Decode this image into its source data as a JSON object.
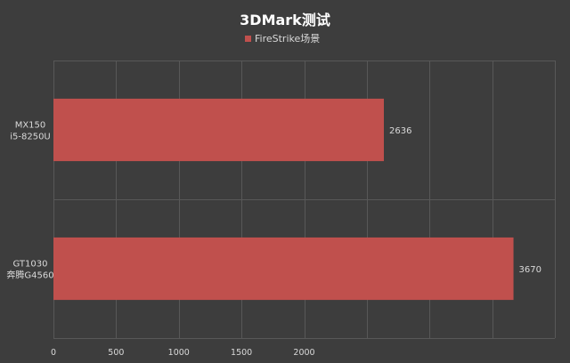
{
  "chart_data": {
    "type": "bar",
    "orientation": "horizontal",
    "title": "3DMark测试",
    "legend": {
      "position": "top",
      "entries": [
        "FireStrike场景"
      ]
    },
    "categories": [
      [
        "MX150",
        "i5-8250U"
      ],
      [
        "GT1030",
        "奔腾G4560"
      ]
    ],
    "series": [
      {
        "name": "FireStrike场景",
        "values": [
          2636,
          3670
        ],
        "color": "#c0504d"
      }
    ],
    "xlim": [
      0,
      4000
    ],
    "x_ticks": [
      0,
      500,
      1000,
      1500,
      2000
    ],
    "x_tick_labels": [
      "0",
      "500",
      "1000",
      "1500",
      "2000"
    ],
    "grid": true,
    "background_color": "#3d3d3d"
  }
}
